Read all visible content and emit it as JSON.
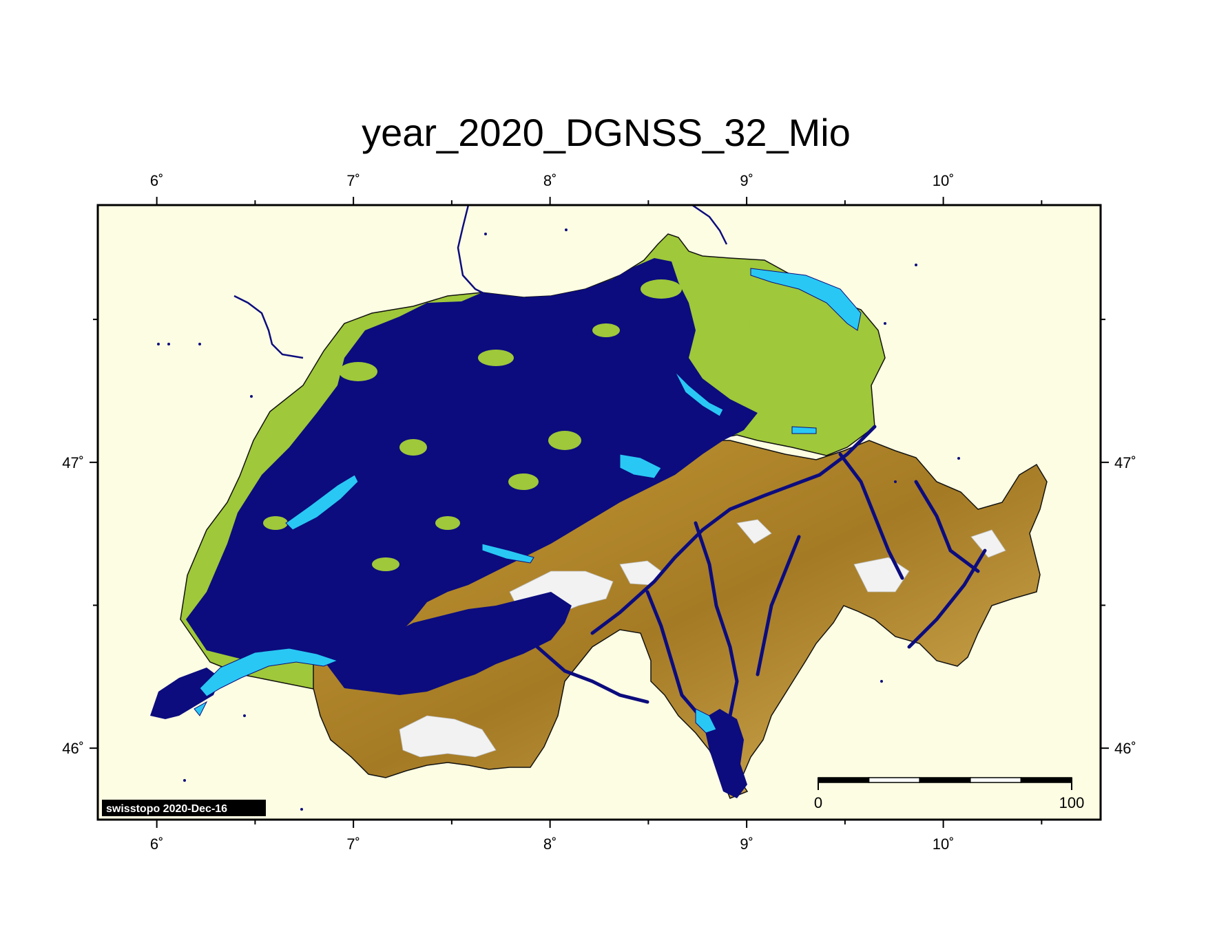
{
  "map": {
    "title": "year_2020_DGNSS_32_Mio",
    "credit": "swisstopo 2020-Dec-16",
    "scale_bar": {
      "start_label": "0",
      "end_label": "100",
      "segments": 5
    },
    "lon_ticks": [
      {
        "value": 6,
        "label": "6˚"
      },
      {
        "value": 7,
        "label": "7˚"
      },
      {
        "value": 8,
        "label": "8˚"
      },
      {
        "value": 9,
        "label": "9˚"
      },
      {
        "value": 10,
        "label": "10˚"
      }
    ],
    "lat_ticks": [
      {
        "value": 47,
        "label": "47˚"
      },
      {
        "value": 46,
        "label": "46˚"
      }
    ],
    "extent": {
      "lon": [
        5.7,
        10.8
      ],
      "lat": [
        45.75,
        47.9
      ]
    },
    "colors": {
      "background": "#fdfde3",
      "frame": "#000000",
      "lowland": "#9fc83a",
      "alpine": "#b8902c",
      "glacier": "#f2f2f2",
      "lake": "#29c8f4",
      "gnss_points": "#0c0c7e",
      "border": "#111111"
    }
  }
}
